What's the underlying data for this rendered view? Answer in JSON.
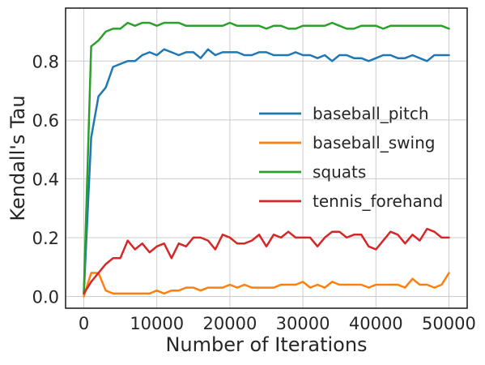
{
  "chart_data": {
    "type": "line",
    "title": "",
    "xlabel": "Number of Iterations",
    "ylabel": "Kendall's Tau",
    "xlim": [
      -2500,
      52500
    ],
    "ylim": [
      -0.04,
      0.98
    ],
    "xticks": [
      0,
      10000,
      20000,
      30000,
      40000,
      50000
    ],
    "xtick_labels": [
      "0",
      "10000",
      "20000",
      "30000",
      "40000",
      "50000"
    ],
    "yticks": [
      0.0,
      0.2,
      0.4,
      0.6,
      0.8
    ],
    "ytick_labels": [
      "0.0",
      "0.2",
      "0.4",
      "0.6",
      "0.8"
    ],
    "grid": true,
    "legend_position": "center-right",
    "x": [
      0,
      1000,
      2000,
      3000,
      4000,
      5000,
      6000,
      7000,
      8000,
      9000,
      10000,
      11000,
      12000,
      13000,
      14000,
      15000,
      16000,
      17000,
      18000,
      19000,
      20000,
      21000,
      22000,
      23000,
      24000,
      25000,
      26000,
      27000,
      28000,
      29000,
      30000,
      31000,
      32000,
      33000,
      34000,
      35000,
      36000,
      37000,
      38000,
      39000,
      40000,
      41000,
      42000,
      43000,
      44000,
      45000,
      46000,
      47000,
      48000,
      49000,
      50000
    ],
    "series": [
      {
        "name": "baseball_pitch",
        "color": "#1f77b4",
        "values": [
          0.01,
          0.54,
          0.68,
          0.71,
          0.78,
          0.79,
          0.8,
          0.8,
          0.82,
          0.83,
          0.82,
          0.84,
          0.83,
          0.82,
          0.83,
          0.83,
          0.81,
          0.84,
          0.82,
          0.83,
          0.83,
          0.83,
          0.82,
          0.82,
          0.83,
          0.83,
          0.82,
          0.82,
          0.82,
          0.83,
          0.82,
          0.82,
          0.81,
          0.82,
          0.8,
          0.82,
          0.82,
          0.81,
          0.81,
          0.8,
          0.81,
          0.82,
          0.82,
          0.81,
          0.81,
          0.82,
          0.81,
          0.8,
          0.82,
          0.82,
          0.82
        ]
      },
      {
        "name": "baseball_swing",
        "color": "#ff7f0e",
        "values": [
          0.0,
          0.08,
          0.08,
          0.02,
          0.01,
          0.01,
          0.01,
          0.01,
          0.01,
          0.01,
          0.02,
          0.01,
          0.02,
          0.02,
          0.03,
          0.03,
          0.02,
          0.03,
          0.03,
          0.03,
          0.04,
          0.03,
          0.04,
          0.03,
          0.03,
          0.03,
          0.03,
          0.04,
          0.04,
          0.04,
          0.05,
          0.03,
          0.04,
          0.03,
          0.05,
          0.04,
          0.04,
          0.04,
          0.04,
          0.03,
          0.04,
          0.04,
          0.04,
          0.04,
          0.03,
          0.06,
          0.04,
          0.04,
          0.03,
          0.04,
          0.08
        ]
      },
      {
        "name": "squats",
        "color": "#2ca02c",
        "values": [
          0.01,
          0.85,
          0.87,
          0.9,
          0.91,
          0.91,
          0.93,
          0.92,
          0.93,
          0.93,
          0.92,
          0.93,
          0.93,
          0.93,
          0.92,
          0.92,
          0.92,
          0.92,
          0.92,
          0.92,
          0.93,
          0.92,
          0.92,
          0.92,
          0.92,
          0.91,
          0.92,
          0.92,
          0.91,
          0.91,
          0.92,
          0.92,
          0.92,
          0.92,
          0.93,
          0.92,
          0.91,
          0.91,
          0.92,
          0.92,
          0.92,
          0.91,
          0.92,
          0.92,
          0.92,
          0.92,
          0.92,
          0.92,
          0.92,
          0.92,
          0.91
        ]
      },
      {
        "name": "tennis_forehand",
        "color": "#d62728",
        "values": [
          0.01,
          0.05,
          0.08,
          0.11,
          0.13,
          0.13,
          0.19,
          0.16,
          0.18,
          0.15,
          0.17,
          0.18,
          0.13,
          0.18,
          0.17,
          0.2,
          0.2,
          0.19,
          0.16,
          0.21,
          0.2,
          0.18,
          0.18,
          0.19,
          0.21,
          0.17,
          0.21,
          0.2,
          0.22,
          0.2,
          0.2,
          0.2,
          0.17,
          0.2,
          0.22,
          0.22,
          0.2,
          0.21,
          0.21,
          0.17,
          0.16,
          0.19,
          0.22,
          0.21,
          0.18,
          0.21,
          0.19,
          0.23,
          0.22,
          0.2,
          0.2
        ]
      }
    ]
  }
}
